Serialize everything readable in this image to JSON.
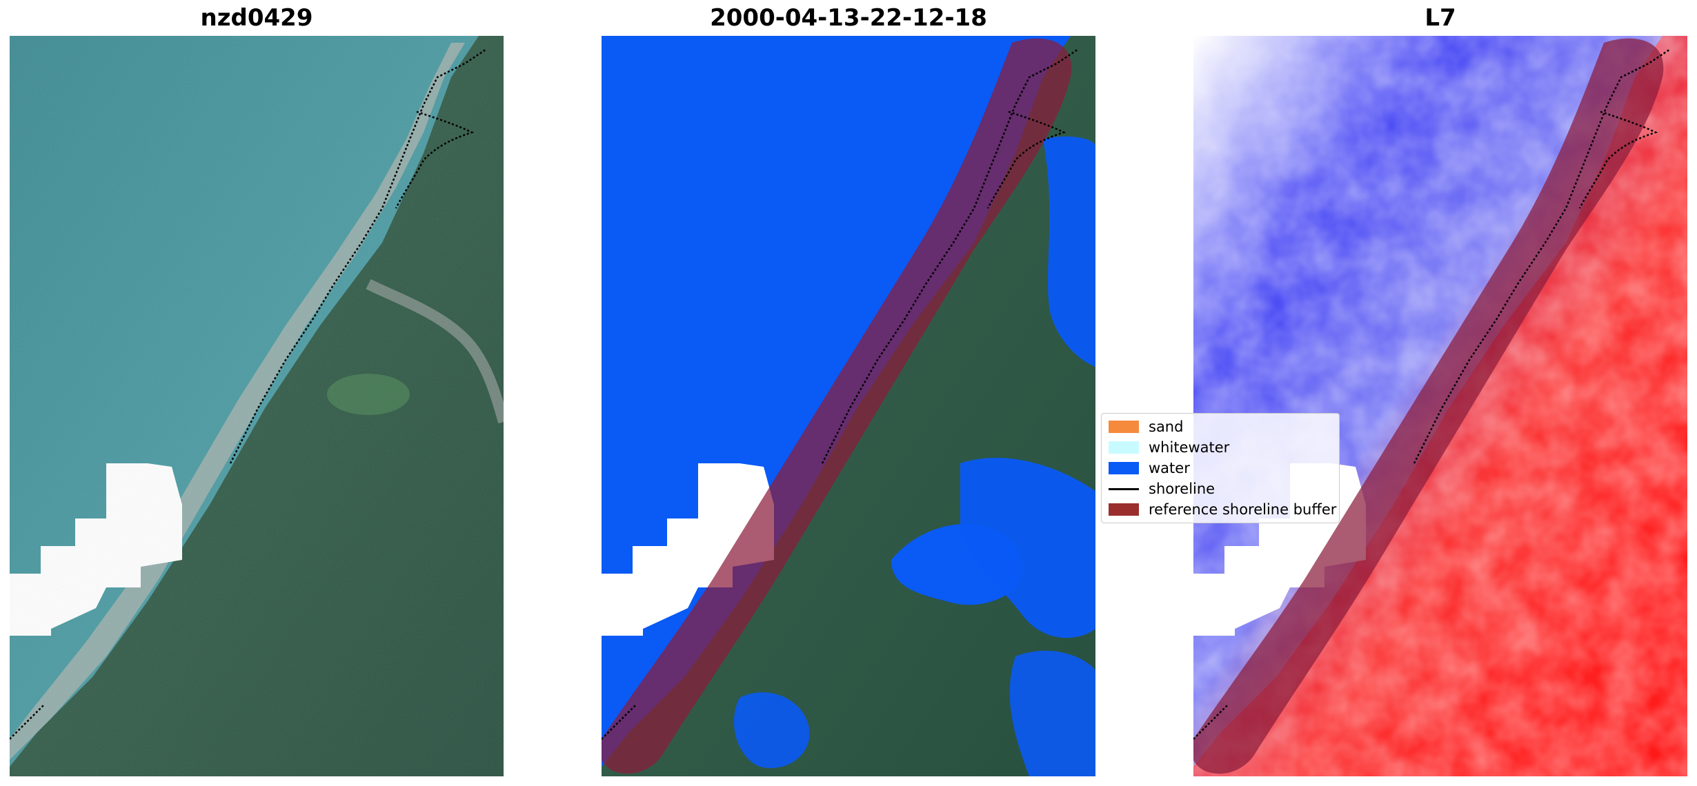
{
  "figure": {
    "titles": [
      "nzd0429",
      "2000-04-13-22-12-18",
      "L7"
    ]
  },
  "legend": {
    "items": [
      {
        "label": "sand",
        "color": "#f58a3c",
        "kind": "patch"
      },
      {
        "label": "whitewater",
        "color": "#c8fbff",
        "kind": "patch"
      },
      {
        "label": "water",
        "color": "#0a5af5",
        "kind": "patch"
      },
      {
        "label": "shoreline",
        "color": "#000000",
        "kind": "line"
      },
      {
        "label": "reference shoreline buffer",
        "color": "#9a2e2e",
        "kind": "patch"
      }
    ]
  },
  "colors": {
    "ocean": "#3f8f95",
    "land": "#2f5a44",
    "water_class": "#0a5af5",
    "buffer": "#8a1c3c",
    "cloud": "#ffffff",
    "index_positive": "#ff0000",
    "index_negative": "#0000ff"
  }
}
